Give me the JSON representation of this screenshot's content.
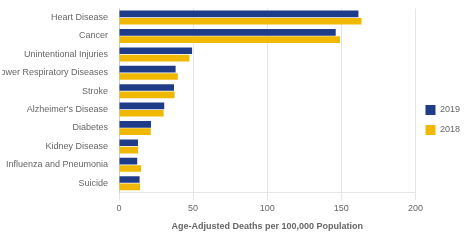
{
  "chart_data": {
    "type": "bar",
    "orientation": "horizontal",
    "categories": [
      "Heart Disease",
      "Cancer",
      "Unintentional Injuries",
      "Chronic Lower Respiratory Diseases",
      "Stroke",
      "Alzheimer's Disease",
      "Diabetes",
      "Kidney Disease",
      "Influenza and Pneumonia",
      "Suicide"
    ],
    "series": [
      {
        "name": "2019",
        "color": "#1f3c88",
        "values": [
          161.5,
          146.2,
          49.3,
          38.2,
          37.1,
          30.5,
          21.6,
          12.8,
          12.3,
          13.9
        ]
      },
      {
        "name": "2018",
        "color": "#f0b800",
        "values": [
          163.6,
          149.1,
          47.5,
          39.7,
          37.5,
          30.1,
          21.4,
          12.9,
          14.9,
          14.2
        ]
      }
    ],
    "xlabel": "Age-Adjusted Deaths per 100,000 Population",
    "xlim": [
      0,
      200
    ],
    "xticks": [
      0,
      50,
      100,
      150,
      200
    ],
    "grid": true,
    "legend": "right"
  }
}
